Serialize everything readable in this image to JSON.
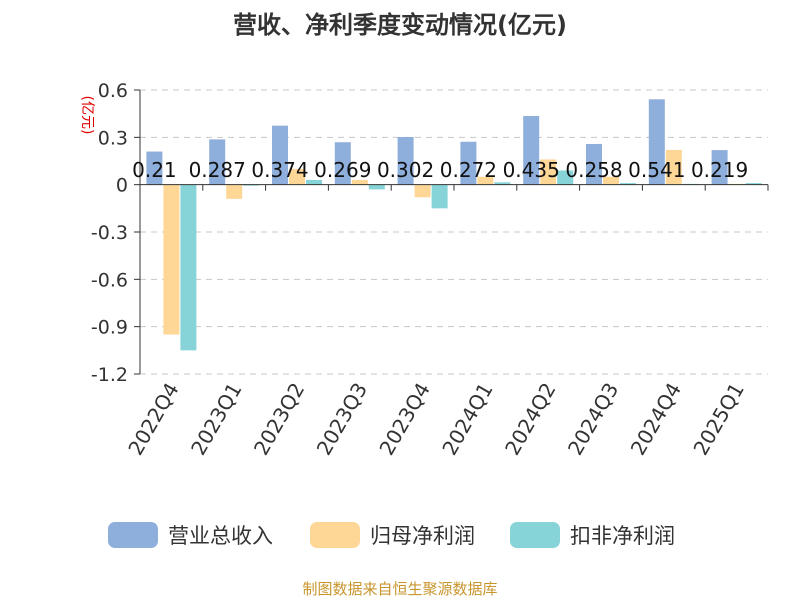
{
  "chart_data": {
    "type": "bar",
    "title": "营收、净利季度变动情况(亿元)",
    "unit_label": "(亿元)",
    "categories": [
      "2022Q4",
      "2023Q1",
      "2023Q2",
      "2023Q3",
      "2023Q4",
      "2024Q1",
      "2024Q2",
      "2024Q3",
      "2024Q4",
      "2025Q1"
    ],
    "series": [
      {
        "name": "营业总收入",
        "color": "#8eaedb",
        "values": [
          0.21,
          0.287,
          0.374,
          0.269,
          0.302,
          0.272,
          0.435,
          0.258,
          0.541,
          0.219
        ]
      },
      {
        "name": "归母净利润",
        "color": "#fed797",
        "values": [
          -0.95,
          -0.09,
          0.1,
          0.03,
          -0.08,
          0.05,
          0.16,
          0.05,
          0.22,
          0.005
        ]
      },
      {
        "name": "扣非净利润",
        "color": "#86d4d8",
        "values": [
          -1.05,
          0.0,
          0.03,
          -0.03,
          -0.15,
          0.015,
          0.09,
          0.01,
          0.005,
          0.01
        ]
      }
    ],
    "data_labels": [
      "0.21",
      "0.287",
      "0.374",
      "0.269",
      "0.302",
      "0.272",
      "0.435",
      "0.258",
      "0.541",
      "0.219"
    ],
    "ylim": [
      -1.2,
      0.6
    ],
    "yticks": [
      "0.6",
      "0.3",
      "0",
      "-0.3",
      "-0.6",
      "-0.9",
      "-1.2"
    ],
    "ytick_values": [
      0.6,
      0.3,
      0,
      -0.3,
      -0.6,
      -0.9,
      -1.2
    ],
    "grid": true,
    "legend_position": "bottom"
  },
  "source_text": "制图数据来自恒生聚源数据库"
}
